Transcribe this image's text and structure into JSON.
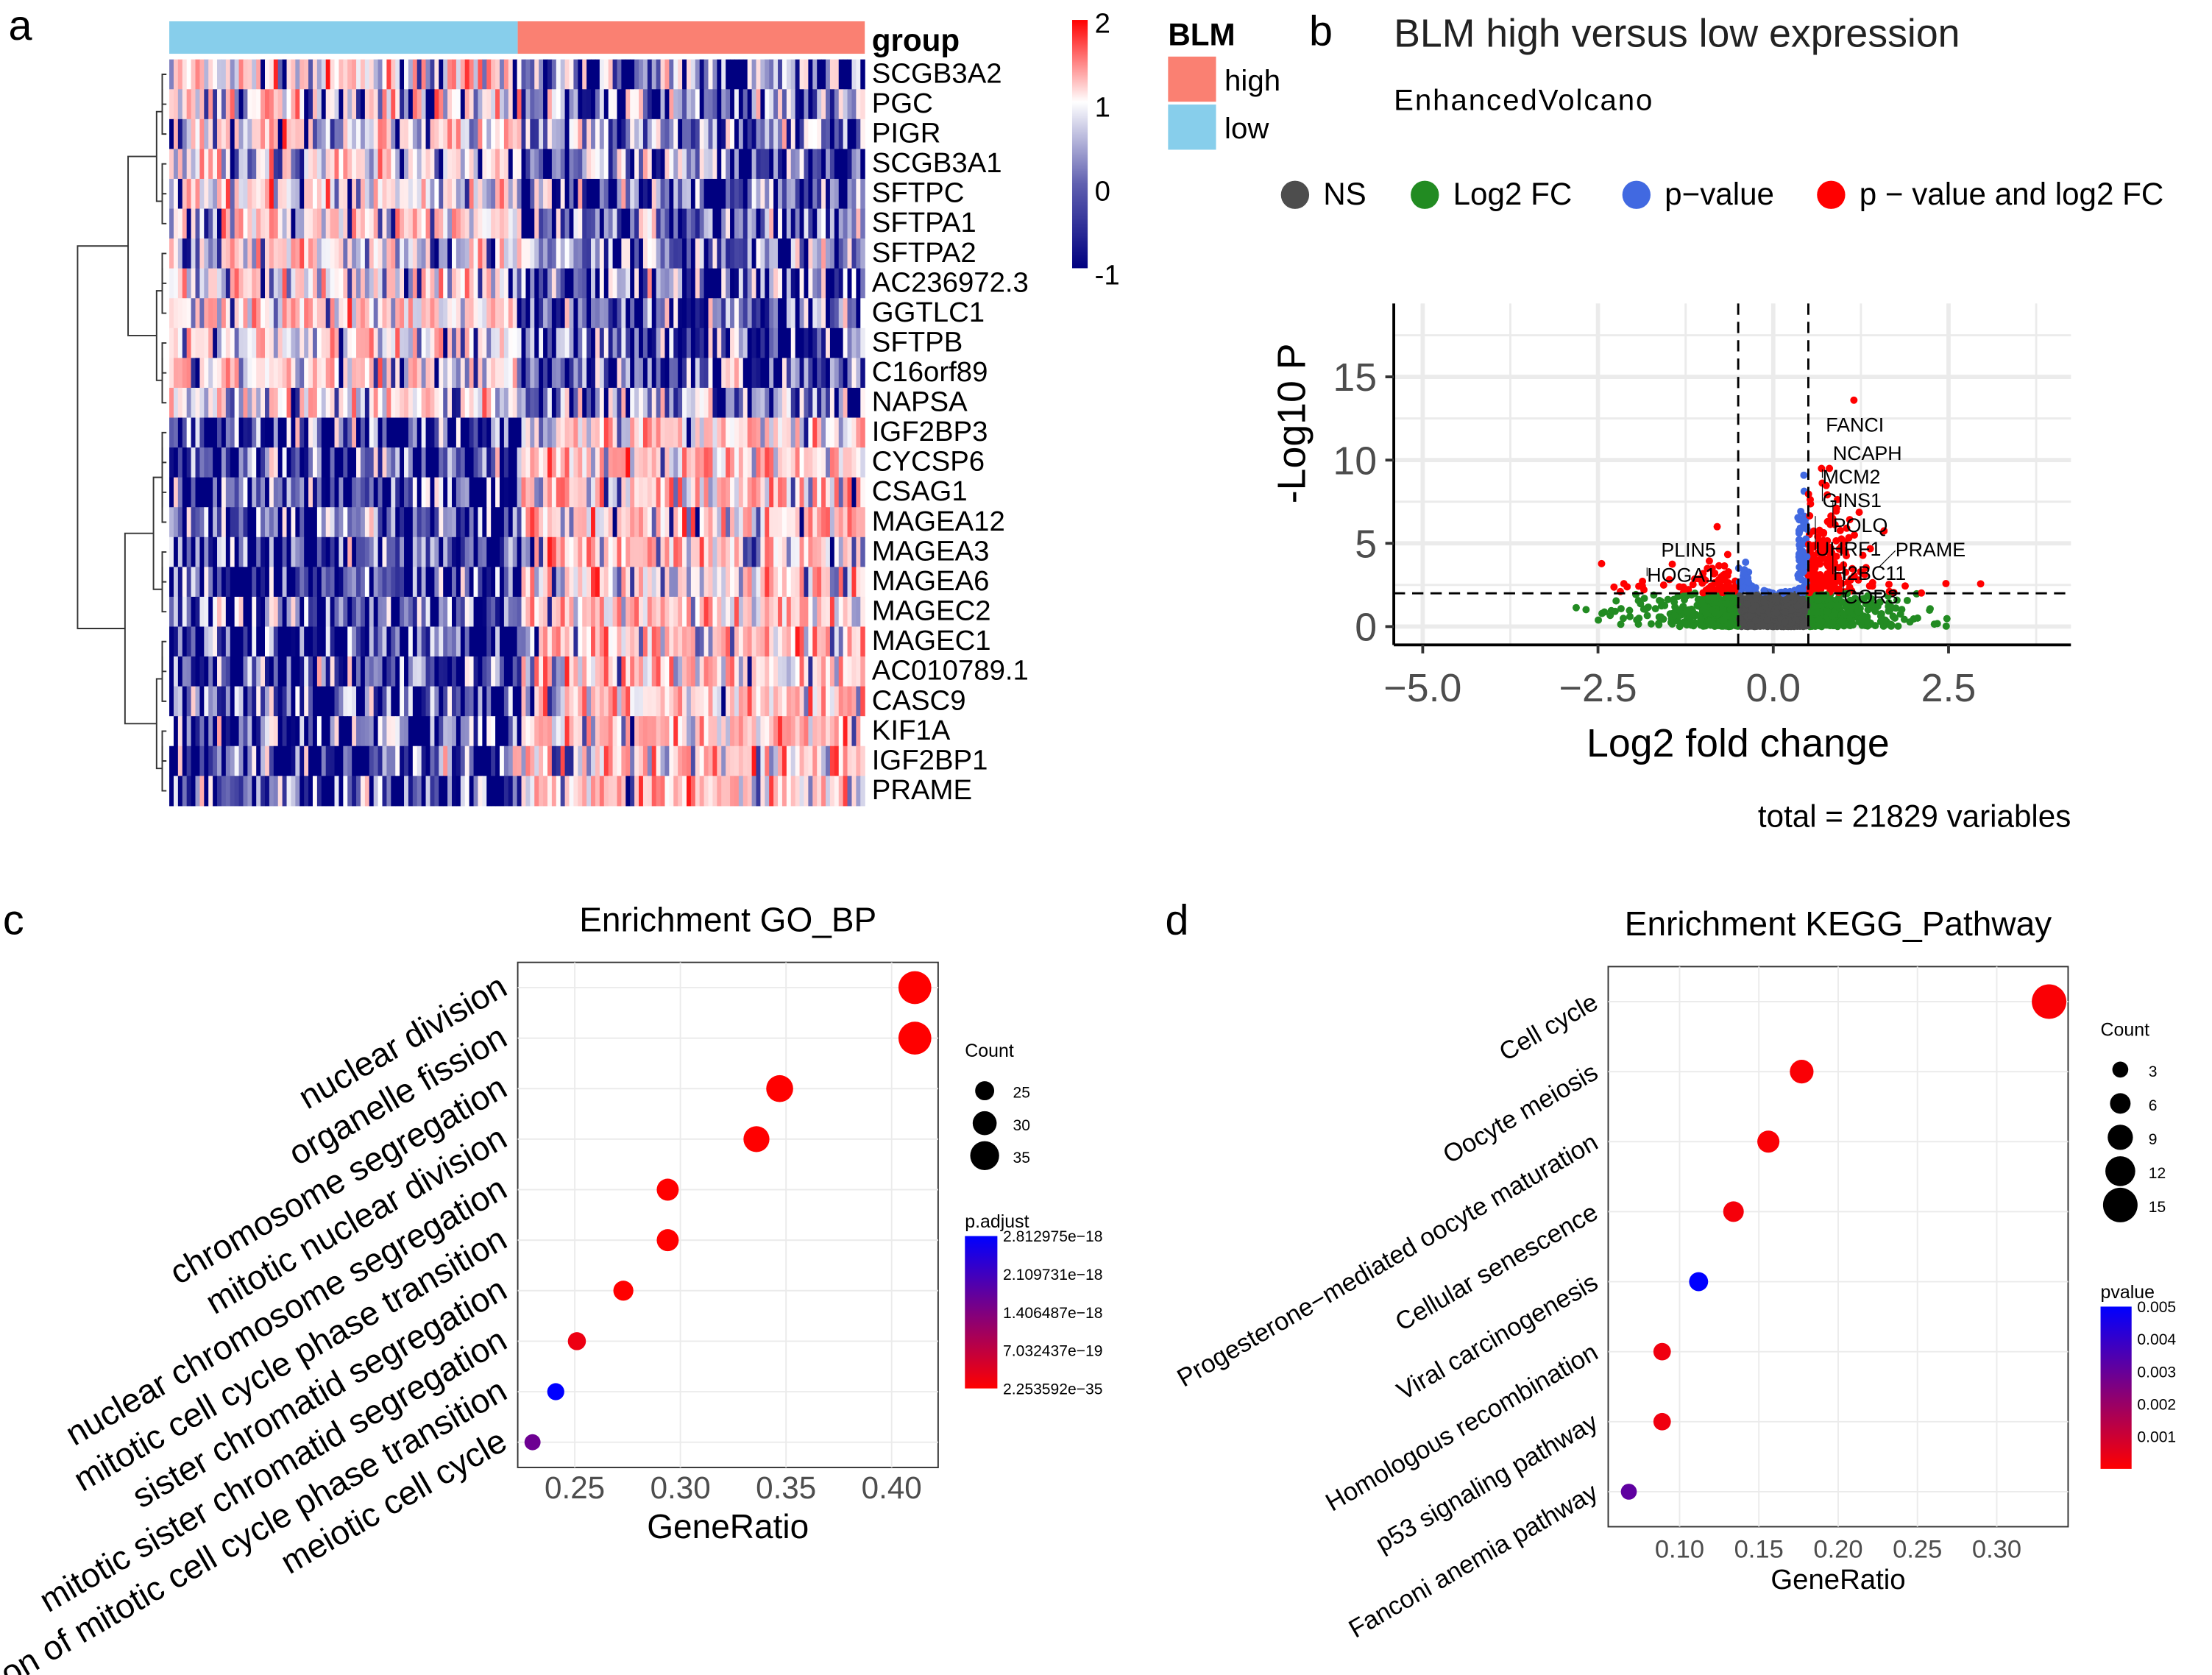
{
  "panels": {
    "a": "a",
    "b": "b",
    "c": "c",
    "d": "d"
  },
  "chart_data": [
    {
      "type": "heatmap",
      "panel": "a",
      "group_label": "group",
      "groups": [
        {
          "name": "low",
          "color": "#87CEEB"
        },
        {
          "name": "high",
          "color": "#FA8072"
        }
      ],
      "legend_title": "BLM",
      "legend_items": [
        "high",
        "low"
      ],
      "colorbar": {
        "ticks": [
          "2",
          "1",
          "0",
          "-1"
        ],
        "colors": [
          "#FF0000",
          "#FFFFFF",
          "#000080"
        ],
        "range": [
          -1,
          2
        ]
      },
      "genes": [
        "SCGB3A2",
        "PGC",
        "PIGR",
        "SCGB3A1",
        "SFTPC",
        "SFTPA1",
        "SFTPA2",
        "AC236972.3",
        "GGTLC1",
        "SFTPB",
        "C16orf89",
        "NAPSA",
        "IGF2BP3",
        "CYCSP6",
        "CSAG1",
        "MAGEA12",
        "MAGEA3",
        "MAGEA6",
        "MAGEC2",
        "MAGEC1",
        "AC010789.1",
        "CASC9",
        "KIF1A",
        "IGF2BP1",
        "PRAME"
      ],
      "higher_in_low_count": 12
    },
    {
      "type": "scatter",
      "panel": "b",
      "title": "BLM high versus low expression",
      "subtitle": "EnhancedVolcano",
      "xlabel": "Log2 fold change",
      "ylabel": "-Log10 P",
      "xlim": [
        -5.4,
        4.4
      ],
      "ylim": [
        -1,
        19
      ],
      "xticks": [
        "−5.0",
        "−2.5",
        "0.0",
        "2.5"
      ],
      "yticks": [
        "0",
        "5",
        "10",
        "15"
      ],
      "legend": [
        {
          "name": "NS",
          "color": "#4d4d4d"
        },
        {
          "name": "Log2 FC",
          "color": "#228B22"
        },
        {
          "name": "p−value",
          "color": "#4169E1"
        },
        {
          "name": "p − value and log2 FC",
          "color": "#FF0000"
        }
      ],
      "fc_cutoff": 0.5,
      "p_cutoff": 2,
      "labels": [
        {
          "gene": "FANCI",
          "x": 0.75,
          "y": 11.7
        },
        {
          "gene": "NCAPH",
          "x": 0.85,
          "y": 10
        },
        {
          "gene": "MCM2",
          "x": 0.7,
          "y": 9.1
        },
        {
          "gene": "GINS1",
          "x": 0.7,
          "y": 8.2
        },
        {
          "gene": "POLQ",
          "x": 0.85,
          "y": 7.2
        },
        {
          "gene": "UHRF1",
          "x": 0.6,
          "y": 6.3
        },
        {
          "gene": "H2BC11",
          "x": 0.85,
          "y": 4.5
        },
        {
          "gene": "COR3",
          "x": 1.0,
          "y": 3.6
        },
        {
          "gene": "PRAME",
          "x": 1.5,
          "y": 3.2
        },
        {
          "gene": "PLIN5",
          "x": -1.6,
          "y": 4.2
        },
        {
          "gene": "HOGA1",
          "x": -1.8,
          "y": 3.2
        }
      ],
      "caption": "total = 21829 variables"
    },
    {
      "type": "scatter",
      "panel": "c",
      "title": "Enrichment GO_BP",
      "xlabel": "GeneRatio",
      "xlim": [
        0.223,
        0.422
      ],
      "xticks": [
        "0.25",
        "0.30",
        "0.35",
        "0.40"
      ],
      "categories": [
        "nuclear division",
        "organelle fission",
        "chromosome segregation",
        "mitotic nuclear division",
        "nuclear chromosome segregation",
        "mitotic cell cycle phase transition",
        "sister chromatid segregation",
        "mitotic sister chromatid segregation",
        "regulation of mitotic cell cycle phase transition",
        "meiotic cell cycle"
      ],
      "gene_ratio": [
        0.411,
        0.411,
        0.347,
        0.336,
        0.294,
        0.294,
        0.273,
        0.251,
        0.241,
        0.23
      ],
      "count": [
        39,
        39,
        33,
        32,
        28,
        28,
        26,
        24,
        23,
        22
      ],
      "color_value": [
        0,
        0,
        0,
        0,
        0,
        0,
        0,
        2e-19,
        2.8e-18,
        1.6e-18
      ],
      "size_legend_title": "Count",
      "size_legend": [
        "25",
        "30",
        "35"
      ],
      "color_legend_title": "p.adjust",
      "color_legend": [
        "2.812975e−18",
        "2.109731e−18",
        "1.406487e−18",
        "7.032437e−19",
        "2.253592e−35"
      ],
      "color_range": [
        "#FF0000",
        "#0000FF"
      ]
    },
    {
      "type": "scatter",
      "panel": "d",
      "title": "Enrichment KEGG_Pathway",
      "xlabel": "GeneRatio",
      "xlim": [
        0.055,
        0.345
      ],
      "xticks": [
        "0.10",
        "0.15",
        "0.20",
        "0.25",
        "0.30"
      ],
      "categories": [
        "Cell cycle",
        "Oocyte meiosis",
        "Progesterone−mediated oocyte maturation",
        "Cellular senescence",
        "Viral carcinogenesis",
        "Homologous recombination",
        "p53 signaling pathway",
        "Fanconi anemia pathway"
      ],
      "gene_ratio": [
        0.333,
        0.177,
        0.156,
        0.134,
        0.112,
        0.089,
        0.089,
        0.068
      ],
      "count": [
        15,
        8,
        7,
        6,
        5,
        4,
        4,
        3
      ],
      "color_value": [
        0.0001,
        0.0001,
        0.0001,
        0.0002,
        0.0051,
        0.0003,
        0.0003,
        0.0032
      ],
      "size_legend_title": "Count",
      "size_legend": [
        "3",
        "6",
        "9",
        "12",
        "15"
      ],
      "color_legend_title": "pvalue",
      "color_legend": [
        "0.005",
        "0.004",
        "0.003",
        "0.002",
        "0.001"
      ],
      "color_range": [
        "#FF0000",
        "#0000FF"
      ]
    }
  ]
}
